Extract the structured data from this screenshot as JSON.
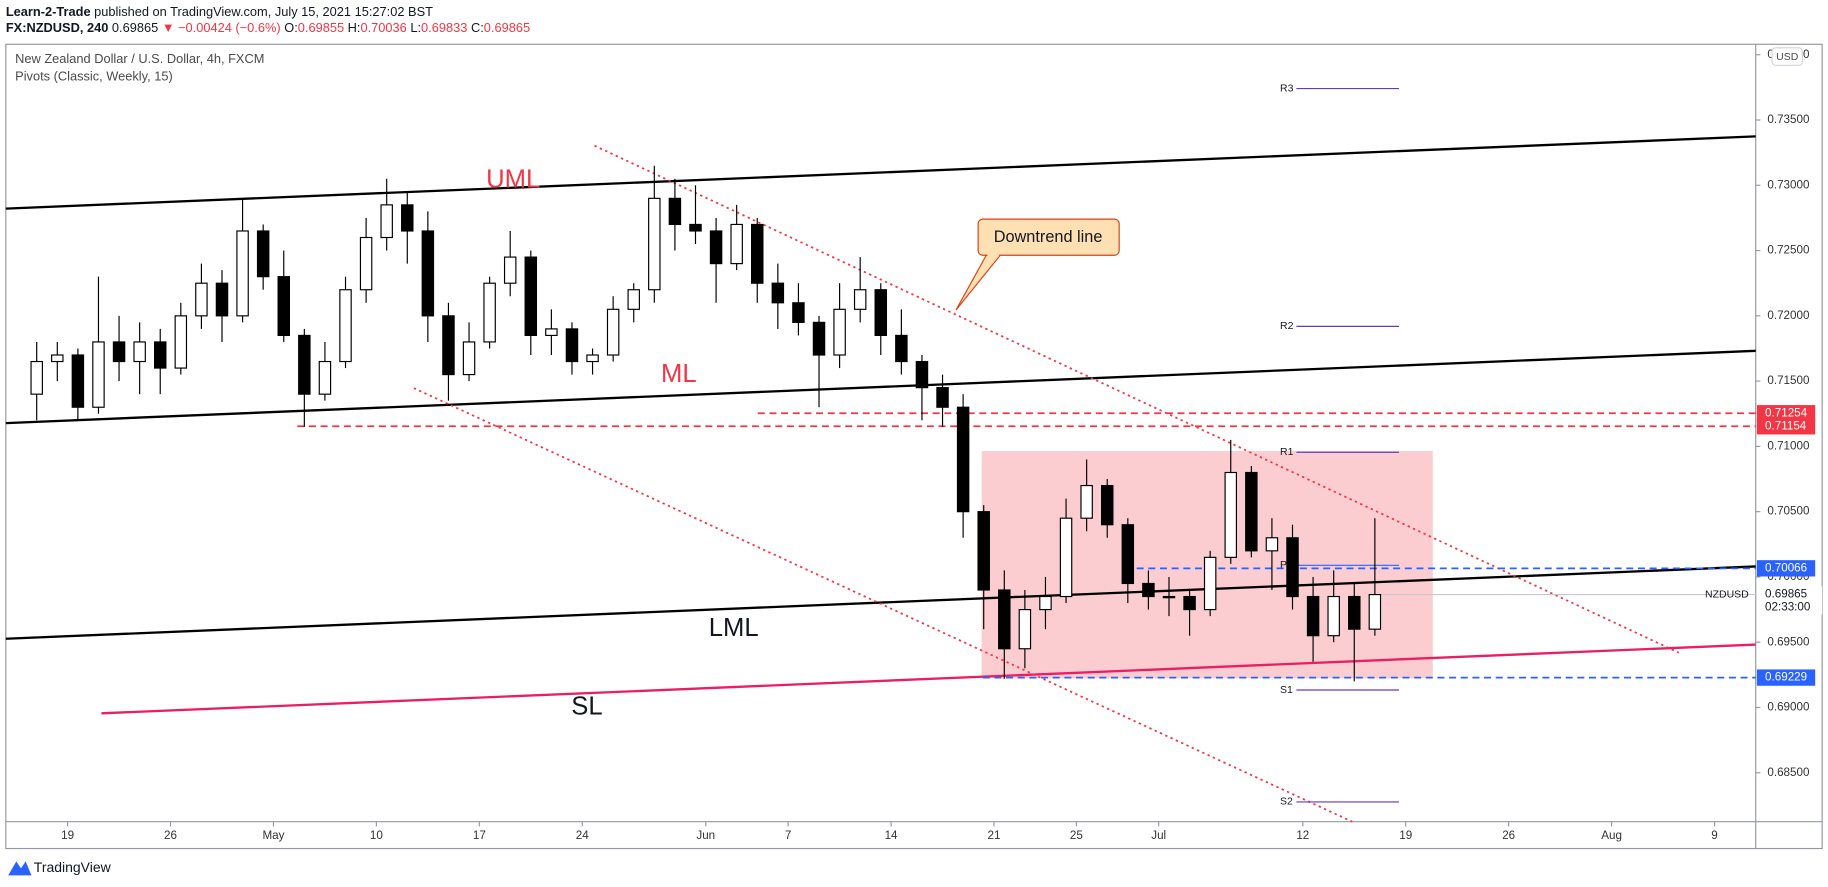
{
  "header": {
    "author": "Learn-2-Trade",
    "published": "published on TradingView.com, July 15, 2021 15:27:02 BST",
    "symbol": "FX:NZDUSD, 240",
    "price": "0.69865",
    "change": "▼ −0.00424 (−0.6%)",
    "ohlc": [
      {
        "label": "O:",
        "value": "0.69855"
      },
      {
        "label": "H:",
        "value": "0.70036"
      },
      {
        "label": "L:",
        "value": "0.69833"
      },
      {
        "label": "C:",
        "value": "0.69865"
      }
    ]
  },
  "chart_data": {
    "type": "candlestick",
    "title": "New Zealand Dollar / U.S. Dollar, 4h, FXCM",
    "indicator": "Pivots (Classic, Weekly, 15)",
    "currency": "USD",
    "up_color": "#ffffff",
    "down_color": "#000000",
    "wick_color": "#000000",
    "x": [
      "2021-04-15",
      "2021-04-16",
      "2021-04-19",
      "2021-04-20",
      "2021-04-21",
      "2021-04-22",
      "2021-04-23",
      "2021-04-26",
      "2021-04-27",
      "2021-04-28",
      "2021-04-29",
      "2021-04-30",
      "2021-05-03",
      "2021-05-04",
      "2021-05-05",
      "2021-05-06",
      "2021-05-07",
      "2021-05-10",
      "2021-05-11",
      "2021-05-12",
      "2021-05-13",
      "2021-05-14",
      "2021-05-17",
      "2021-05-18",
      "2021-05-19",
      "2021-05-20",
      "2021-05-21",
      "2021-05-24",
      "2021-05-25",
      "2021-05-26",
      "2021-05-27",
      "2021-05-28",
      "2021-05-31",
      "2021-06-01",
      "2021-06-02",
      "2021-06-03",
      "2021-06-04",
      "2021-06-07",
      "2021-06-08",
      "2021-06-09",
      "2021-06-10",
      "2021-06-11",
      "2021-06-14",
      "2021-06-15",
      "2021-06-16",
      "2021-06-17",
      "2021-06-18",
      "2021-06-21",
      "2021-06-22",
      "2021-06-23",
      "2021-06-24",
      "2021-06-25",
      "2021-06-28",
      "2021-06-29",
      "2021-06-30",
      "2021-07-01",
      "2021-07-02",
      "2021-07-05",
      "2021-07-06",
      "2021-07-07",
      "2021-07-08",
      "2021-07-09",
      "2021-07-12",
      "2021-07-13",
      "2021-07-14",
      "2021-07-15"
    ],
    "open": [
      0.714,
      0.7165,
      0.717,
      0.713,
      0.718,
      0.7165,
      0.718,
      0.716,
      0.72,
      0.7225,
      0.72,
      0.7265,
      0.723,
      0.7185,
      0.714,
      0.7165,
      0.722,
      0.726,
      0.7285,
      0.7265,
      0.72,
      0.7155,
      0.718,
      0.7225,
      0.7245,
      0.7185,
      0.719,
      0.7165,
      0.717,
      0.7205,
      0.722,
      0.729,
      0.727,
      0.7265,
      0.724,
      0.727,
      0.7225,
      0.721,
      0.7195,
      0.717,
      0.7205,
      0.722,
      0.7185,
      0.7165,
      0.7145,
      0.713,
      0.705,
      0.699,
      0.6945,
      0.6975,
      0.6985,
      0.7045,
      0.707,
      0.704,
      0.6995,
      0.6985,
      0.6985,
      0.6975,
      0.7015,
      0.708,
      0.702,
      0.703,
      0.6985,
      0.6955,
      0.6985,
      0.696
    ],
    "high": [
      0.718,
      0.718,
      0.7175,
      0.723,
      0.72,
      0.7195,
      0.719,
      0.721,
      0.724,
      0.7235,
      0.729,
      0.727,
      0.725,
      0.719,
      0.718,
      0.723,
      0.7275,
      0.7305,
      0.7295,
      0.728,
      0.721,
      0.7195,
      0.723,
      0.7265,
      0.725,
      0.7205,
      0.7195,
      0.7175,
      0.7215,
      0.7225,
      0.7315,
      0.7305,
      0.73,
      0.7275,
      0.7285,
      0.7275,
      0.724,
      0.7225,
      0.72,
      0.7225,
      0.7245,
      0.7225,
      0.7205,
      0.717,
      0.7155,
      0.714,
      0.7055,
      0.7005,
      0.699,
      0.7,
      0.706,
      0.709,
      0.7075,
      0.7045,
      0.7005,
      0.7,
      0.699,
      0.702,
      0.7105,
      0.7085,
      0.7045,
      0.704,
      0.7,
      0.7005,
      0.6995,
      0.7045
    ],
    "low": [
      0.712,
      0.715,
      0.712,
      0.7125,
      0.715,
      0.714,
      0.714,
      0.7155,
      0.719,
      0.718,
      0.7195,
      0.722,
      0.718,
      0.7115,
      0.7135,
      0.716,
      0.721,
      0.725,
      0.724,
      0.718,
      0.7135,
      0.715,
      0.7175,
      0.7215,
      0.717,
      0.717,
      0.7155,
      0.7155,
      0.7165,
      0.7195,
      0.721,
      0.725,
      0.7255,
      0.721,
      0.7235,
      0.721,
      0.719,
      0.7185,
      0.713,
      0.716,
      0.7195,
      0.717,
      0.7155,
      0.712,
      0.7115,
      0.703,
      0.696,
      0.6922,
      0.693,
      0.696,
      0.698,
      0.7035,
      0.703,
      0.698,
      0.6975,
      0.697,
      0.6955,
      0.697,
      0.701,
      0.7015,
      0.699,
      0.6975,
      0.6935,
      0.695,
      0.692,
      0.6955
    ],
    "close": [
      0.7165,
      0.717,
      0.713,
      0.718,
      0.7165,
      0.718,
      0.716,
      0.72,
      0.7225,
      0.72,
      0.7265,
      0.723,
      0.7185,
      0.714,
      0.7165,
      0.722,
      0.726,
      0.7285,
      0.7265,
      0.72,
      0.7155,
      0.718,
      0.7225,
      0.7245,
      0.7185,
      0.719,
      0.7165,
      0.717,
      0.7205,
      0.722,
      0.729,
      0.727,
      0.7265,
      0.724,
      0.727,
      0.7225,
      0.721,
      0.7195,
      0.717,
      0.7205,
      0.722,
      0.7185,
      0.7165,
      0.7145,
      0.713,
      0.705,
      0.699,
      0.6945,
      0.6975,
      0.6985,
      0.7045,
      0.707,
      0.704,
      0.6995,
      0.6985,
      0.6985,
      0.6975,
      0.7015,
      0.708,
      0.702,
      0.703,
      0.6985,
      0.6955,
      0.6985,
      0.696,
      0.69865
    ],
    "xlim": [
      "2021-04-14",
      "2021-08-11"
    ],
    "xticks": [
      {
        "value": "2021-04-19",
        "label": "19"
      },
      {
        "value": "2021-04-26",
        "label": "26"
      },
      {
        "value": "2021-05-03",
        "label": "May"
      },
      {
        "value": "2021-05-10",
        "label": "10"
      },
      {
        "value": "2021-05-17",
        "label": "17"
      },
      {
        "value": "2021-05-24",
        "label": "24"
      },
      {
        "value": "2021-06-01",
        "label": "Jun"
      },
      {
        "value": "2021-06-07",
        "label": "7"
      },
      {
        "value": "2021-06-14",
        "label": "14"
      },
      {
        "value": "2021-06-21",
        "label": "21"
      },
      {
        "value": "2021-06-25",
        "label": "25"
      },
      {
        "value": "2021-07-01",
        "label": "Jul"
      },
      {
        "value": "2021-07-12",
        "label": "12"
      },
      {
        "value": "2021-07-19",
        "label": "19"
      },
      {
        "value": "2021-07-26",
        "label": "26"
      },
      {
        "value": "2021-08-02",
        "label": "Aug"
      },
      {
        "value": "2021-08-09",
        "label": "9"
      }
    ],
    "ylim": [
      0.68125,
      0.7408
    ],
    "yticks": [
      {
        "value": 0.685,
        "label": "0.68500"
      },
      {
        "value": 0.69,
        "label": "0.69000"
      },
      {
        "value": 0.695,
        "label": "0.69500"
      },
      {
        "value": 0.7,
        "label": "0.70000"
      },
      {
        "value": 0.705,
        "label": "0.70500"
      },
      {
        "value": 0.71,
        "label": "0.71000"
      },
      {
        "value": 0.715,
        "label": "0.71500"
      },
      {
        "value": 0.72,
        "label": "0.72000"
      },
      {
        "value": 0.725,
        "label": "0.72500"
      },
      {
        "value": 0.73,
        "label": "0.73000"
      },
      {
        "value": 0.735,
        "label": "0.73500"
      },
      {
        "value": 0.74,
        "label": "0.74000"
      }
    ],
    "price_levels": [
      {
        "value": 0.71254,
        "color": "#f23645"
      },
      {
        "value": 0.71154,
        "color": "#f23645"
      },
      {
        "value": 0.70066,
        "color": "#2962ff"
      },
      {
        "value": 0.69229,
        "color": "#2962ff"
      }
    ],
    "last_price": {
      "symbol": "NZDUSD",
      "value": 0.69865,
      "countdown": "02:33:00"
    },
    "annotations": {
      "uml": "UML",
      "ml": "ML",
      "lml": "LML",
      "sl": "SL",
      "callout": "Downtrend line"
    },
    "pivots": [
      "R3",
      "R2",
      "R1",
      "P",
      "S1",
      "S2"
    ]
  },
  "footer": {
    "brand": "TradingView"
  }
}
